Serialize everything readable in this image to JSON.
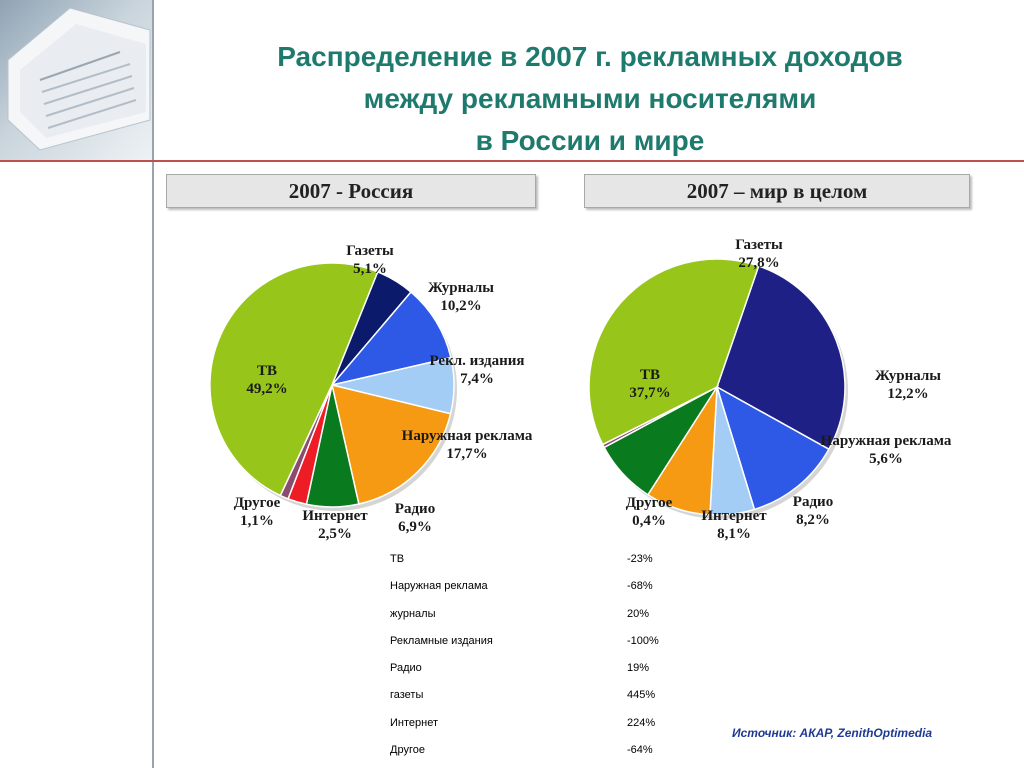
{
  "title": {
    "line1": "Распределение в 2007 г. рекламных доходов",
    "line2": "между рекламными носителями",
    "line3": "в России и мире"
  },
  "colors": {
    "title": "#1f7a6e",
    "divider": "#c0504d",
    "source": "#1f3a93"
  },
  "chart_data": [
    {
      "type": "pie",
      "title": "2007 - Россия",
      "slices": [
        {
          "name": "Газеты",
          "value": 5.1,
          "label": "5,1%",
          "color": "#0c1a6b"
        },
        {
          "name": "Журналы",
          "value": 10.2,
          "label": "10,2%",
          "color": "#2e58e6"
        },
        {
          "name": "Рекл. издания",
          "value": 7.4,
          "label": "7,4%",
          "color": "#a4cdf5"
        },
        {
          "name": "Наружная реклама",
          "value": 17.7,
          "label": "17,7%",
          "color": "#f59a12"
        },
        {
          "name": "Радио",
          "value": 6.9,
          "label": "6,9%",
          "color": "#0a7a1e"
        },
        {
          "name": "Интернет",
          "value": 2.5,
          "label": "2,5%",
          "color": "#ee1c24"
        },
        {
          "name": "Другое",
          "value": 1.1,
          "label": "1,1%",
          "color": "#8b4a6e"
        },
        {
          "name": "ТВ",
          "value": 49.2,
          "label": "49,2%",
          "color": "#97c51a"
        }
      ]
    },
    {
      "type": "pie",
      "title": "2007 – мир в целом",
      "slices": [
        {
          "name": "Газеты",
          "value": 27.8,
          "label": "27,8%",
          "color": "#1f2086"
        },
        {
          "name": "Журналы",
          "value": 12.2,
          "label": "12,2%",
          "color": "#2e58e6"
        },
        {
          "name": "Наружная реклама",
          "value": 5.6,
          "label": "5,6%",
          "color": "#a4cdf5"
        },
        {
          "name": "Радио",
          "value": 8.2,
          "label": "8,2%",
          "color": "#f59a12"
        },
        {
          "name": "Интернет",
          "value": 8.1,
          "label": "8,1%",
          "color": "#0a7a1e"
        },
        {
          "name": "Другое",
          "value": 0.4,
          "label": "0,4%",
          "color": "#8b4a6e"
        },
        {
          "name": "ТВ",
          "value": 37.7,
          "label": "37,7%",
          "color": "#97c51a"
        }
      ]
    }
  ],
  "table": [
    {
      "name": "ТВ",
      "value": "-23%"
    },
    {
      "name": "Наружная реклама",
      "value": "-68%"
    },
    {
      "name": "журналы",
      "value": "20%"
    },
    {
      "name": "Рекламные издания",
      "value": "-100%"
    },
    {
      "name": "Радио",
      "value": "19%"
    },
    {
      "name": "газеты",
      "value": "445%"
    },
    {
      "name": "Интернет",
      "value": "224%"
    },
    {
      "name": "Другое",
      "value": "-64%"
    }
  ],
  "source": "Источник: АКАР, ZenithOptimedia"
}
